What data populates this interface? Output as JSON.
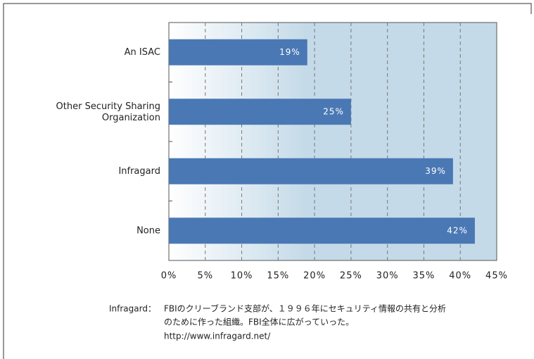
{
  "chart_data": {
    "type": "bar",
    "orientation": "horizontal",
    "categories": [
      "An ISAC",
      "Other Security Sharing\nOrganization",
      "Infragard",
      "None"
    ],
    "values": [
      19,
      25,
      39,
      42
    ],
    "value_labels": [
      "19%",
      "25%",
      "39%",
      "42%"
    ],
    "color": "#4a78b4",
    "xlim": [
      0,
      45
    ],
    "xticks": [
      {
        "value": 0,
        "label": "0%"
      },
      {
        "value": 5,
        "label": "5%"
      },
      {
        "value": 10,
        "label": "10%"
      },
      {
        "value": 15,
        "label": "15%"
      },
      {
        "value": 20,
        "label": "20%"
      },
      {
        "value": 25,
        "label": "25%"
      },
      {
        "value": 30,
        "label": "30%"
      },
      {
        "value": 35,
        "label": "35%"
      },
      {
        "value": 40,
        "label": "40%"
      },
      {
        "value": 45,
        "label": "45%"
      }
    ],
    "grid": true,
    "note_label": "Infragard：",
    "note_lines": [
      "FBIのクリーブランド支部が、１９９６年にセキュリティ情報の共有と分析",
      "のために作った組織。FBI全体に広がっていった。",
      "http://www.infragard.net/"
    ]
  }
}
